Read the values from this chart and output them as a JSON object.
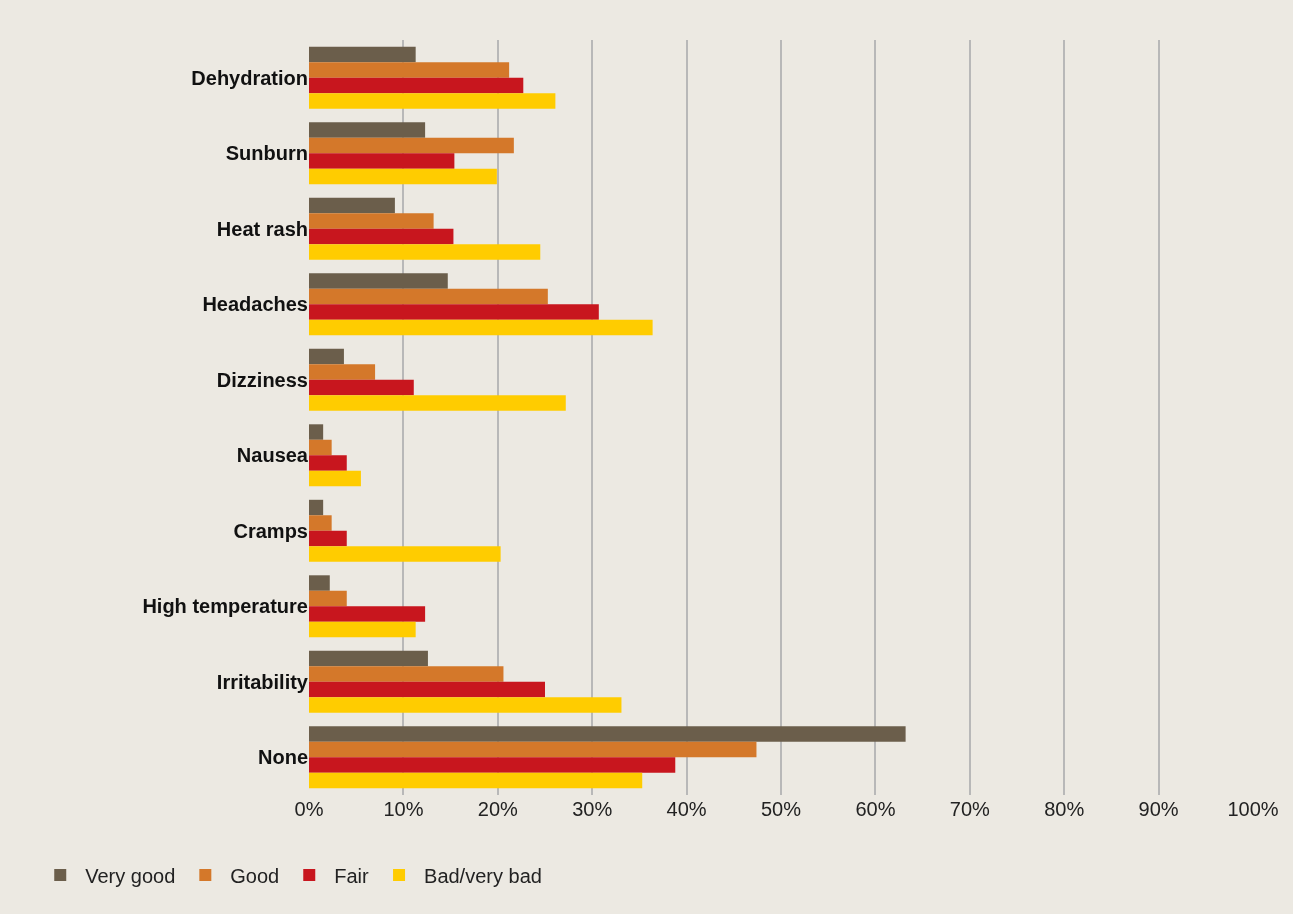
{
  "chart_data": {
    "type": "bar",
    "orientation": "horizontal",
    "categories": [
      "Dehydration",
      "Sunburn",
      "Heat rash",
      "Headaches",
      "Dizziness",
      "Nausea",
      "Cramps",
      "High temperature",
      "Irritability",
      "None"
    ],
    "series": [
      {
        "name": "Very good",
        "color": "#6b5e4b",
        "values": [
          11.3,
          12.3,
          9.1,
          14.7,
          3.7,
          1.5,
          1.5,
          2.2,
          12.6,
          63.2
        ]
      },
      {
        "name": "Good",
        "color": "#d4782a",
        "values": [
          21.2,
          21.7,
          13.2,
          25.3,
          7.0,
          2.4,
          2.4,
          4.0,
          20.6,
          47.4
        ]
      },
      {
        "name": "Fair",
        "color": "#c8161e",
        "values": [
          22.7,
          15.4,
          15.3,
          30.7,
          11.1,
          4.0,
          4.0,
          12.3,
          25.0,
          38.8
        ]
      },
      {
        "name": "Bad/very bad",
        "color": "#ffcc00",
        "values": [
          26.1,
          19.9,
          24.5,
          36.4,
          27.2,
          5.5,
          20.3,
          11.3,
          33.1,
          35.3
        ]
      }
    ],
    "xlim": [
      0,
      100
    ],
    "xticks": [
      {
        "value": 0,
        "label": "0%"
      },
      {
        "value": 10,
        "label": "10%"
      },
      {
        "value": 20,
        "label": "20%"
      },
      {
        "value": 30,
        "label": "30%"
      },
      {
        "value": 40,
        "label": "40%"
      },
      {
        "value": 50,
        "label": "50%"
      },
      {
        "value": 60,
        "label": "60%"
      },
      {
        "value": 70,
        "label": "70%"
      },
      {
        "value": 80,
        "label": "80%"
      },
      {
        "value": 90,
        "label": "90%"
      },
      {
        "value": 100,
        "label": "100%"
      }
    ],
    "grid": "x",
    "legend": "bottom left"
  }
}
